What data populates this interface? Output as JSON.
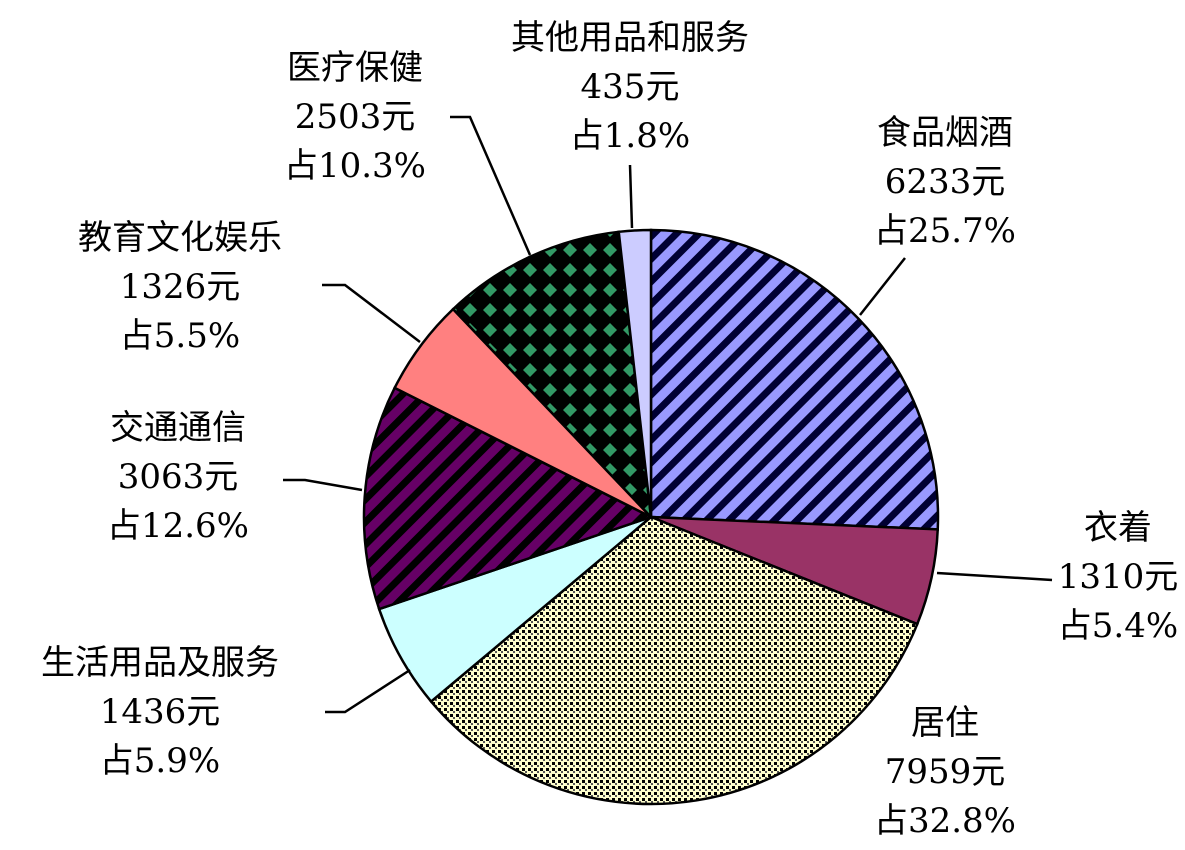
{
  "chart_data": {
    "type": "pie",
    "categories": [
      "食品烟酒",
      "衣着",
      "居住",
      "生活用品及服务",
      "交通通信",
      "教育文化娱乐",
      "医疗保健",
      "其他用品和服务"
    ],
    "values": [
      6233,
      1310,
      7959,
      1436,
      3063,
      1326,
      2503,
      435
    ],
    "value_labels": [
      "6233元",
      "1310元",
      "7959元",
      "1436元",
      "3063元",
      "1326元",
      "2503元",
      "435元"
    ],
    "share_labels": [
      "占25.7%",
      "占5.4%",
      "占32.8%",
      "占5.9%",
      "占12.6%",
      "占5.5%",
      "占10.3%",
      "占1.8%"
    ],
    "colors": [
      "#9999ff",
      "#993366",
      "#ffffcc",
      "#ccffff",
      "#660066",
      "#ff8080",
      "#339966",
      "#ccccff"
    ],
    "patterns": [
      "stripe",
      "none",
      "check",
      "none",
      "stripe",
      "none",
      "diamond",
      "none"
    ]
  }
}
